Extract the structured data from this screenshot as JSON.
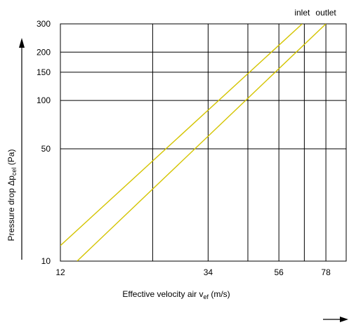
{
  "chart_data": {
    "type": "line",
    "title": "",
    "xlabel": {
      "prefix": "Effective velocity air v",
      "sub": "ef",
      "suffix": " (m/s)"
    },
    "ylabel": {
      "prefix": "Pressure drop Δp",
      "sub": "cel",
      "suffix": " (Pa)"
    },
    "x_scale": "log",
    "y_scale": "log",
    "xlim": [
      12,
      90
    ],
    "ylim": [
      10,
      300
    ],
    "x_gridlines": [
      12,
      23,
      34,
      45,
      56,
      67,
      78,
      90
    ],
    "x_tick_labels": [
      "12",
      "34",
      "56",
      "78"
    ],
    "y_gridlines": [
      10,
      50,
      100,
      150,
      200,
      300
    ],
    "y_tick_labels": [
      "10",
      "50",
      "100",
      "150",
      "200",
      "300"
    ],
    "grid": true,
    "series_color": "#d4c400",
    "series": [
      {
        "name": "inlet",
        "x": [
          12,
          66
        ],
        "y": [
          12.5,
          300
        ]
      },
      {
        "name": "outlet",
        "x": [
          13.5,
          78
        ],
        "y": [
          10,
          300
        ]
      }
    ]
  }
}
